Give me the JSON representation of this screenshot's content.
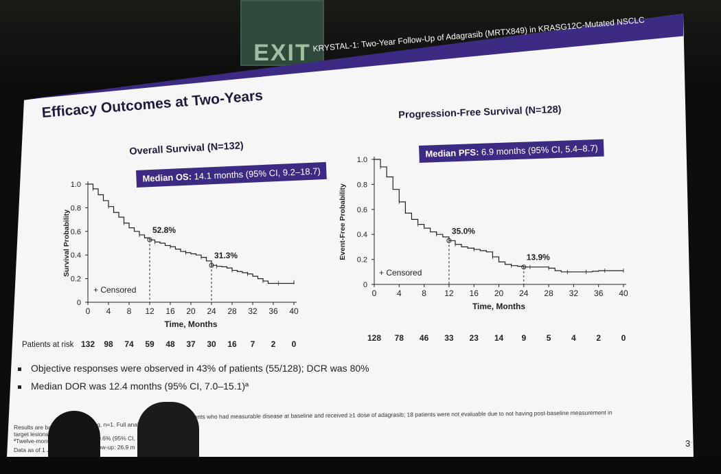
{
  "slide": {
    "banner": "KRYSTAL-1: Two-Year Follow-Up of Adagrasib (MRTX849) in KRASG12C-Mutated NSCLC",
    "title": "Efficacy Outcomes at Two-Years",
    "os_title": "Overall Survival (N=132)",
    "pfs_title": "Progression-Free Survival (N=128)",
    "os_median_label": "Median OS:",
    "os_median_value": "14.1 months (95% CI, 9.2–18.7)",
    "pfs_median_label": "Median PFS:",
    "pfs_median_value": "6.9 months (95% CI, 5.4–8.7)",
    "os_annotations": [
      "52.8%",
      "31.3%"
    ],
    "pfs_annotations": [
      "35.0%",
      "13.9%"
    ],
    "censored": "+ Censored",
    "at_risk_label": "Patients at risk",
    "bullets": [
      "Objective responses were observed in 43% of patients (55/128); DCR was 80%",
      "Median DOR was 12.4 months (95% CI, 7.0–15.1)ª"
    ],
    "footnotes": [
      "Results are bas",
      "target lesions",
      "ªTwelve-month ev",
      "Data as of 1 Janu",
      "ssing, n=1. Full analysis s",
      "as 50.6% (95% CI, 36.1",
      "follow-up: 26.9 m",
      "all patients who had measurable disease at baseline and received ≥1 dose of adagrasib; 18 patients were not evaluable due to not having post-baseline measurement in"
    ],
    "page_number": "3",
    "exit_sign": "EXIT"
  },
  "chart_data": [
    {
      "type": "line",
      "title": "Overall Survival (N=132)",
      "xlabel": "Time, Months",
      "ylabel": "Survival Probability",
      "x_ticks": [
        "0",
        "4",
        "8",
        "12",
        "16",
        "20",
        "24",
        "28",
        "32",
        "36",
        "40"
      ],
      "y_ticks": [
        "0",
        "0.2",
        "0.4",
        "0.6",
        "0.8",
        "1.0"
      ],
      "xlim": [
        0,
        40
      ],
      "ylim": [
        0,
        1.0
      ],
      "series": [
        {
          "x": [
            0,
            1,
            2,
            3,
            4,
            5,
            6,
            7,
            8,
            9,
            10,
            11,
            12,
            13,
            14,
            15,
            16,
            17,
            18,
            19,
            20,
            21,
            22,
            23,
            24,
            25,
            26,
            27,
            28,
            29,
            30,
            31,
            32,
            33,
            34,
            35,
            36,
            37,
            38,
            39,
            40
          ],
          "y": [
            1.0,
            0.96,
            0.91,
            0.86,
            0.81,
            0.76,
            0.72,
            0.67,
            0.63,
            0.6,
            0.57,
            0.545,
            0.528,
            0.51,
            0.5,
            0.48,
            0.47,
            0.45,
            0.43,
            0.42,
            0.41,
            0.4,
            0.38,
            0.35,
            0.313,
            0.305,
            0.3,
            0.29,
            0.27,
            0.26,
            0.25,
            0.24,
            0.22,
            0.2,
            0.18,
            0.16,
            0.16,
            0.16,
            0.16,
            0.16,
            0.17
          ]
        }
      ],
      "annotations": [
        {
          "x": 12,
          "y": 0.528,
          "text": "52.8%"
        },
        {
          "x": 24,
          "y": 0.313,
          "text": "31.3%"
        }
      ],
      "at_risk": [
        "132",
        "98",
        "74",
        "59",
        "48",
        "37",
        "30",
        "16",
        "7",
        "2",
        "0"
      ]
    },
    {
      "type": "line",
      "title": "Progression-Free Survival (N=128)",
      "xlabel": "Time, Months",
      "ylabel": "Event-Free Probability",
      "x_ticks": [
        "0",
        "4",
        "8",
        "12",
        "16",
        "20",
        "24",
        "28",
        "32",
        "36",
        "40"
      ],
      "y_ticks": [
        "0",
        "0.2",
        "0.4",
        "0.6",
        "0.8",
        "1.0"
      ],
      "xlim": [
        0,
        40
      ],
      "ylim": [
        0,
        1.0
      ],
      "series": [
        {
          "x": [
            0,
            1,
            2,
            3,
            4,
            5,
            6,
            7,
            8,
            9,
            10,
            11,
            12,
            13,
            14,
            15,
            16,
            17,
            18,
            19,
            20,
            21,
            22,
            23,
            24,
            25,
            26,
            27,
            28,
            29,
            30,
            31,
            32,
            33,
            34,
            35,
            36,
            37,
            38,
            39,
            40
          ],
          "y": [
            1.0,
            0.94,
            0.86,
            0.76,
            0.66,
            0.57,
            0.52,
            0.48,
            0.45,
            0.42,
            0.4,
            0.38,
            0.35,
            0.32,
            0.3,
            0.29,
            0.28,
            0.27,
            0.26,
            0.22,
            0.18,
            0.16,
            0.15,
            0.145,
            0.139,
            0.139,
            0.139,
            0.139,
            0.13,
            0.11,
            0.1,
            0.1,
            0.1,
            0.1,
            0.1,
            0.105,
            0.11,
            0.11,
            0.11,
            0.11,
            0.11
          ]
        }
      ],
      "annotations": [
        {
          "x": 12,
          "y": 0.35,
          "text": "35.0%"
        },
        {
          "x": 24,
          "y": 0.139,
          "text": "13.9%"
        }
      ],
      "at_risk": [
        "128",
        "78",
        "46",
        "33",
        "23",
        "14",
        "9",
        "5",
        "4",
        "2",
        "0"
      ]
    }
  ]
}
